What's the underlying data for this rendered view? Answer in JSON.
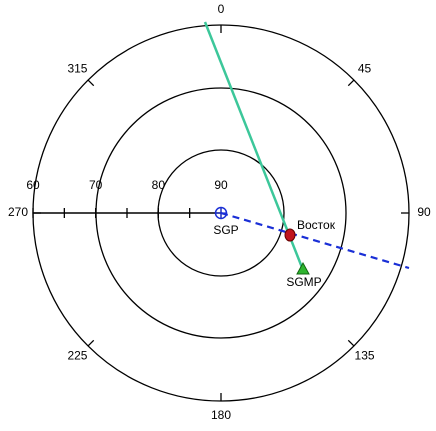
{
  "azimuth_labels": [
    "0",
    "45",
    "90",
    "135",
    "180",
    "225",
    "270",
    "315"
  ],
  "radial_labels": [
    "60",
    "70",
    "80",
    "90"
  ],
  "points": {
    "sgp": "SGP",
    "vostok": "Восток",
    "sgmp": "SGMP"
  }
}
